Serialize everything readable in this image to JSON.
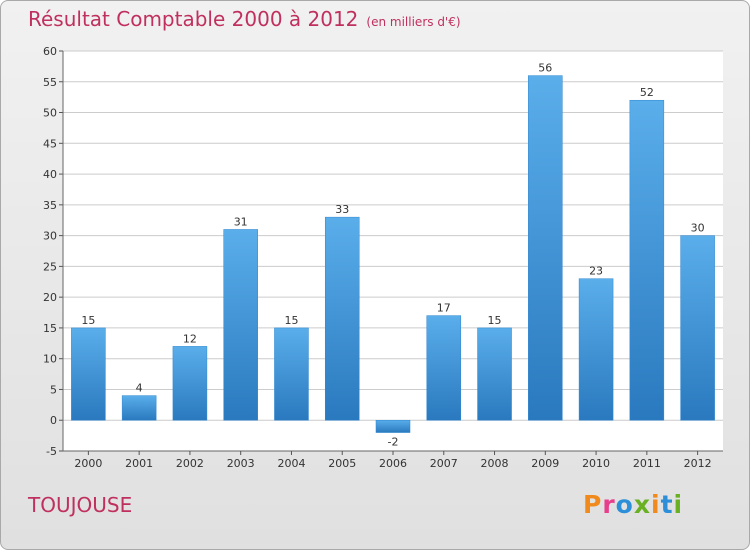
{
  "header": {
    "title": "Résultat Comptable 2000 à 2012",
    "subtitle": "(en milliers d'€)"
  },
  "footer": {
    "commune": "TOUJOUSE",
    "logo_text": "Proxiti",
    "logo_colors": [
      "#f08a1c",
      "#e83e8c",
      "#2d8fd8",
      "#6ab023",
      "#f08a1c",
      "#2d8fd8",
      "#6ab023"
    ]
  },
  "colors": {
    "bar": "#3f97dd",
    "bar_dark": "#2a79bf",
    "title": "#c0305e",
    "grid": "#cccccc"
  },
  "chart_data": {
    "type": "bar",
    "title": "Résultat Comptable 2000 à 2012",
    "subtitle": "(en milliers d'€)",
    "categories": [
      "2000",
      "2001",
      "2002",
      "2003",
      "2004",
      "2005",
      "2006",
      "2007",
      "2008",
      "2009",
      "2010",
      "2011",
      "2012"
    ],
    "values": [
      15,
      4,
      12,
      31,
      15,
      33,
      -2,
      17,
      15,
      56,
      23,
      52,
      30
    ],
    "ylim": [
      -5,
      60
    ],
    "yticks": [
      -5,
      0,
      5,
      10,
      15,
      20,
      25,
      30,
      35,
      40,
      45,
      50,
      55,
      60
    ],
    "grid": true,
    "data_labels": true
  }
}
